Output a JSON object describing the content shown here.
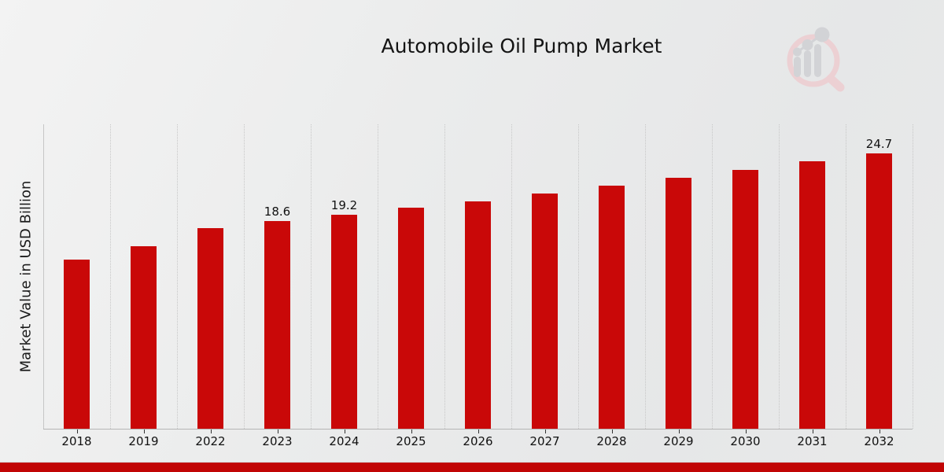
{
  "title": "Automobile Oil Pump Market",
  "logo": {
    "icon": "magnifier-bar-chart-logo",
    "ring_color": "#ecd0d3",
    "glyph_color": "#d2d3d6"
  },
  "chart_data": {
    "type": "bar",
    "title": "Automobile Oil Pump Market",
    "xlabel": "",
    "ylabel": "Market Value in USD Billion",
    "categories": [
      "2018",
      "2019",
      "2022",
      "2023",
      "2024",
      "2025",
      "2026",
      "2027",
      "2028",
      "2029",
      "2030",
      "2031",
      "2032"
    ],
    "values": [
      15.2,
      16.4,
      18.0,
      18.6,
      19.2,
      19.8,
      20.4,
      21.1,
      21.8,
      22.5,
      23.2,
      24.0,
      24.7
    ],
    "data_labels": [
      null,
      null,
      null,
      "18.6",
      "19.2",
      null,
      null,
      null,
      null,
      null,
      null,
      null,
      "24.7"
    ],
    "bar_color": "#c90808",
    "ylim": [
      0,
      27.3
    ],
    "grid": "vertical-dotted-category-boundaries",
    "legend": null
  },
  "footer": {
    "bar_color": "#c10505"
  }
}
